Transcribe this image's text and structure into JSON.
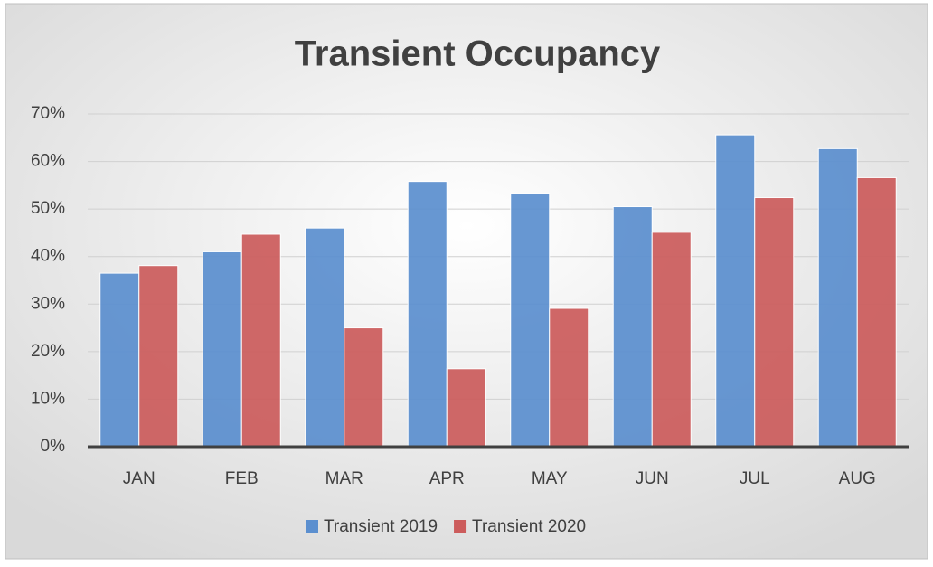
{
  "chart_data": {
    "type": "bar",
    "title": "Transient Occupancy",
    "categories": [
      "JAN",
      "FEB",
      "MAR",
      "APR",
      "MAY",
      "JUN",
      "JUL",
      "AUG"
    ],
    "series": [
      {
        "name": "Transient 2019",
        "color": "#5b8fcf",
        "values": [
          36.5,
          41,
          46,
          55.8,
          53.3,
          50.5,
          65.6,
          62.7
        ]
      },
      {
        "name": "Transient 2020",
        "color": "#cc5c5c",
        "values": [
          38.1,
          44.7,
          25,
          16.4,
          29.1,
          45.1,
          52.4,
          56.6
        ]
      }
    ],
    "ylim": [
      0,
      70
    ],
    "yticks": [
      {
        "value": 0,
        "label": "0%"
      },
      {
        "value": 10,
        "label": "10%"
      },
      {
        "value": 20,
        "label": "20%"
      },
      {
        "value": 30,
        "label": "30%"
      },
      {
        "value": 40,
        "label": "40%"
      },
      {
        "value": 50,
        "label": "50%"
      },
      {
        "value": 60,
        "label": "60%"
      },
      {
        "value": 70,
        "label": "70%"
      }
    ],
    "grid": true,
    "legend": "bottom"
  }
}
